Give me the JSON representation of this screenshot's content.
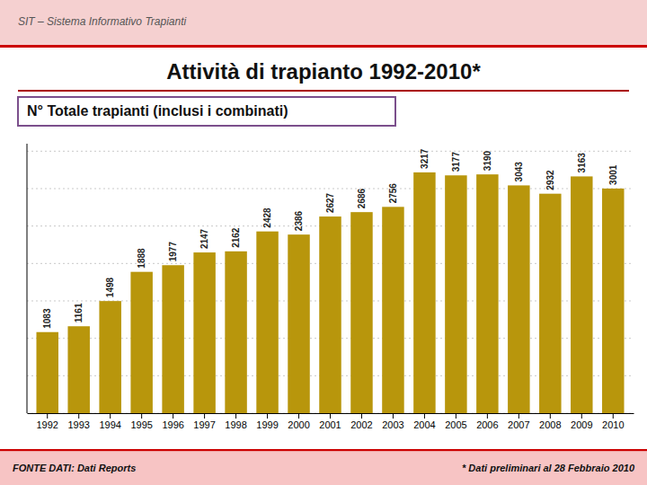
{
  "chart_data": {
    "type": "bar",
    "title": "Attività di trapianto 1992-2010*",
    "subtitle": "N° Totale trapianti (inclusi i combinati)",
    "annotations": [
      "SIT – Sistema Informativo Trapianti",
      "FONTE DATI: Dati Reports",
      "* Dati preliminari al 28 Febbraio 2010"
    ],
    "categories": [
      "1992",
      "1993",
      "1994",
      "1995",
      "1996",
      "1997",
      "1998",
      "1999",
      "2000",
      "2001",
      "2002",
      "2003",
      "2004",
      "2005",
      "2006",
      "2007",
      "2008",
      "2009",
      "2010"
    ],
    "values": [
      1083,
      1161,
      1498,
      1888,
      1977,
      2147,
      2162,
      2428,
      2386,
      2627,
      2686,
      2756,
      3217,
      3177,
      3190,
      3043,
      2932,
      3163,
      3001
    ],
    "color": "#B8960C",
    "ylim": [
      0,
      3600
    ],
    "yticks": [
      0,
      500,
      1000,
      1500,
      2000,
      2500,
      3000,
      3500
    ],
    "grid": true,
    "data_labels": true,
    "tick_labels": "x"
  }
}
